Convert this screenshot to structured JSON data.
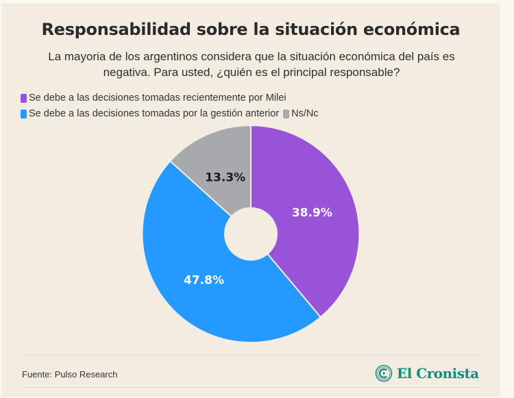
{
  "title": "Responsabilidad sobre la situación económica",
  "subtitle": "La mayoria de los argentinos considera que la situación económica del país es negativa. Para usted, ¿quién es el principal responsable?",
  "footer": {
    "source": "Fuente: Pulso Research",
    "logo_text": "El Cronista",
    "logo_color": "#138b80"
  },
  "chart_data": {
    "type": "pie",
    "style": "donut",
    "title": "Responsabilidad sobre la situación económica",
    "legend_position": "top-left",
    "series": [
      {
        "name": "Se debe a las decisiones tomadas recientemente por Milei",
        "value": 38.9,
        "label": "38.9%",
        "color": "#9953d8",
        "label_color": "#ffffff"
      },
      {
        "name": "Se debe a las decisiones tomadas por la gestión anterior",
        "value": 47.8,
        "label": "47.8%",
        "color": "#2499ff",
        "label_color": "#ffffff"
      },
      {
        "name": "Ns/Nc",
        "value": 13.3,
        "label": "13.3%",
        "color": "#a7a9ad",
        "label_color": "#1a1a1a"
      }
    ]
  }
}
